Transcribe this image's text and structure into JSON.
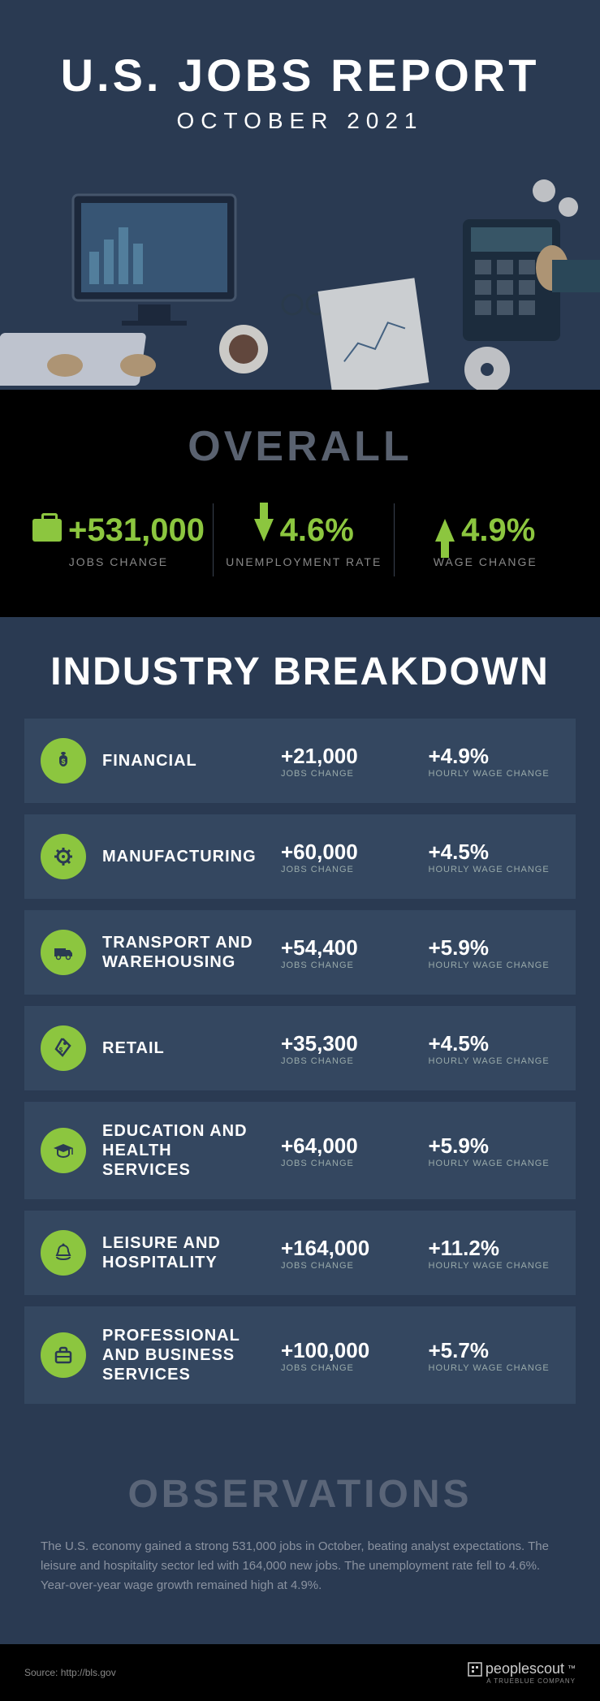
{
  "header": {
    "title": "U.S. JOBS REPORT",
    "subtitle": "OCTOBER 2021"
  },
  "overall": {
    "heading": "OVERALL",
    "stats": [
      {
        "value": "+531,000",
        "label": "JOBS CHANGE",
        "icon": "briefcase"
      },
      {
        "value": "4.6%",
        "label": "UNEMPLOYMENT RATE",
        "icon": "arrow-down"
      },
      {
        "value": "4.9%",
        "label": "WAGE CHANGE",
        "icon": "arrow-up"
      }
    ]
  },
  "industry": {
    "heading": "INDUSTRY BREAKDOWN",
    "jobs_label": "JOBS CHANGE",
    "wage_label": "HOURLY WAGE CHANGE",
    "rows": [
      {
        "name": "FINANCIAL",
        "jobs": "+21,000",
        "wage": "+4.9%",
        "icon": "money-bag"
      },
      {
        "name": "MANUFACTURING",
        "jobs": "+60,000",
        "wage": "+4.5%",
        "icon": "gear"
      },
      {
        "name": "TRANSPORT AND WAREHOUSING",
        "jobs": "+54,400",
        "wage": "+5.9%",
        "icon": "truck"
      },
      {
        "name": "RETAIL",
        "jobs": "+35,300",
        "wage": "+4.5%",
        "icon": "price-tag"
      },
      {
        "name": "EDUCATION AND HEALTH SERVICES",
        "jobs": "+64,000",
        "wage": "+5.9%",
        "icon": "grad-cap"
      },
      {
        "name": "LEISURE AND HOSPITALITY",
        "jobs": "+164,000",
        "wage": "+11.2%",
        "icon": "bell"
      },
      {
        "name": "PROFESSIONAL AND BUSINESS SERVICES",
        "jobs": "+100,000",
        "wage": "+5.7%",
        "icon": "briefcase"
      }
    ]
  },
  "observations": {
    "heading": "OBSERVATIONS",
    "text": "The U.S. economy gained a strong 531,000 jobs in October, beating analyst expectations. The leisure and hospitality sector led with 164,000 new jobs. The unemployment rate fell to 4.6%. Year-over-year wage growth remained high at 4.9%."
  },
  "footer": {
    "source": "Source: http://bls.gov",
    "logo": "peoplescout",
    "logo_sub": "A TRUEBLUE COMPANY"
  },
  "colors": {
    "accent": "#8cc63f",
    "dark_bg": "#000000",
    "navy_bg": "#2a3a52",
    "row_bg": "#344760",
    "muted_heading": "#5a6270"
  }
}
